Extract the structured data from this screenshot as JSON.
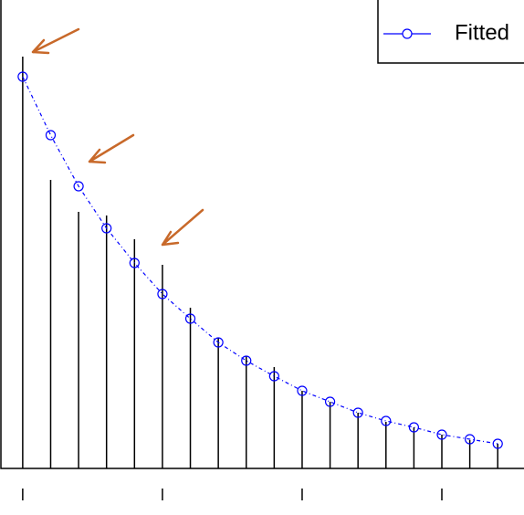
{
  "chart_data": {
    "type": "line",
    "x": [
      0,
      1,
      2,
      3,
      4,
      5,
      6,
      7,
      8,
      9,
      10,
      11,
      12,
      13,
      14,
      15,
      16,
      17
    ],
    "series": [
      {
        "color": "#000000",
        "style": "h",
        "values": [
          0.902,
          0.632,
          0.562,
          0.554,
          0.502,
          0.446,
          0.352,
          0.286,
          0.246,
          0.222,
          0.17,
          0.146,
          0.122,
          0.102,
          0.09,
          0.074,
          0.062,
          0.054
        ]
      },
      {
        "name": "Fitted",
        "color": "#0000ff",
        "style": "dashed-points",
        "values": [
          0.858,
          0.73,
          0.618,
          0.526,
          0.45,
          0.382,
          0.328,
          0.276,
          0.236,
          0.202,
          0.17,
          0.146,
          0.122,
          0.104,
          0.09,
          0.074,
          0.064,
          0.054
        ]
      }
    ],
    "xlim": [
      -0.78,
      17.94
    ],
    "ylim": [
      0,
      1.026
    ],
    "xticks": [
      0,
      5,
      10,
      15
    ],
    "legend": "top-right"
  }
}
